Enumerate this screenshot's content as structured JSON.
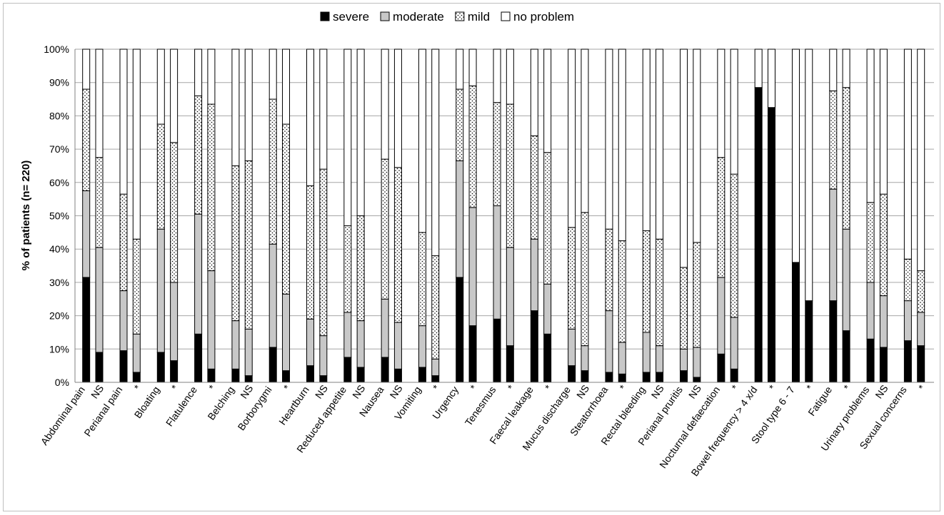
{
  "chart_data": {
    "type": "bar",
    "stacked": true,
    "ylabel": "% of patients (n= 220)",
    "ylim": [
      0,
      100
    ],
    "yticks": [
      "0%",
      "10%",
      "20%",
      "30%",
      "40%",
      "50%",
      "60%",
      "70%",
      "80%",
      "90%",
      "100%"
    ],
    "grid": true,
    "legend_position": "top",
    "legend": [
      {
        "name": "severe",
        "fill": "#000000",
        "pattern": "solid"
      },
      {
        "name": "moderate",
        "fill": "#c8c8c8",
        "pattern": "solid"
      },
      {
        "name": "mild",
        "fill": "#ffffff",
        "pattern": "dots"
      },
      {
        "name": "no problem",
        "fill": "#ffffff",
        "pattern": "solid"
      }
    ],
    "groups": [
      {
        "label": "Abdominal pain",
        "marker": "NS",
        "bars": [
          [
            31.5,
            26,
            30.5,
            12
          ],
          [
            9,
            31.5,
            27,
            32.5
          ]
        ]
      },
      {
        "label": "Perianal pain",
        "marker": "*",
        "bars": [
          [
            9.5,
            18,
            29,
            43.5
          ],
          [
            3,
            11.5,
            28.5,
            57
          ]
        ]
      },
      {
        "label": "Bloating",
        "marker": "*",
        "bars": [
          [
            9,
            37,
            31.5,
            22.5
          ],
          [
            6.5,
            23.5,
            42,
            28
          ]
        ]
      },
      {
        "label": "Flatulence",
        "marker": "*",
        "bars": [
          [
            14.5,
            36,
            35.5,
            14
          ],
          [
            4,
            29.5,
            50,
            16.5
          ]
        ]
      },
      {
        "label": "Belching",
        "marker": "NS",
        "bars": [
          [
            4,
            14.5,
            46.5,
            35
          ],
          [
            2,
            14,
            50.5,
            33.5
          ]
        ]
      },
      {
        "label": "Borborygmi",
        "marker": "*",
        "bars": [
          [
            10.5,
            31,
            43.5,
            15
          ],
          [
            3.5,
            23,
            51,
            22.5
          ]
        ]
      },
      {
        "label": "Heartburn",
        "marker": "NS",
        "bars": [
          [
            5,
            14,
            40,
            41
          ],
          [
            2,
            12,
            50,
            36
          ]
        ]
      },
      {
        "label": "Reduced appetite",
        "marker": "NS",
        "bars": [
          [
            7.5,
            13.5,
            26,
            53
          ],
          [
            4.5,
            14,
            31.5,
            50
          ]
        ]
      },
      {
        "label": "Nausea",
        "marker": "NS",
        "bars": [
          [
            7.5,
            17.5,
            42,
            33
          ],
          [
            4,
            14,
            46.5,
            35.5
          ]
        ]
      },
      {
        "label": "Vomiting",
        "marker": "*",
        "bars": [
          [
            4.5,
            12.5,
            28,
            55
          ],
          [
            2,
            5,
            31,
            62
          ]
        ]
      },
      {
        "label": "Urgency",
        "marker": "*",
        "bars": [
          [
            31.5,
            35,
            21.5,
            12
          ],
          [
            17,
            35.5,
            36.5,
            11
          ]
        ]
      },
      {
        "label": "Tenesmus",
        "marker": "*",
        "bars": [
          [
            19,
            34,
            31,
            16
          ],
          [
            11,
            29.5,
            43,
            16.5
          ]
        ]
      },
      {
        "label": "Faecal leakage",
        "marker": "*",
        "bars": [
          [
            21.5,
            21.5,
            31,
            26
          ],
          [
            14.5,
            15,
            39.5,
            31
          ]
        ]
      },
      {
        "label": "Mucus discharge",
        "marker": "NS",
        "bars": [
          [
            5,
            11,
            30.5,
            53.5
          ],
          [
            3.5,
            7.5,
            40,
            49
          ]
        ]
      },
      {
        "label": "Steatorrhoea",
        "marker": "*",
        "bars": [
          [
            3,
            18.5,
            24.5,
            54
          ],
          [
            2.5,
            9.5,
            30.5,
            57.5
          ]
        ]
      },
      {
        "label": "Rectal bleeding",
        "marker": "NS",
        "bars": [
          [
            3,
            12,
            30.5,
            54.5
          ],
          [
            3,
            8,
            32,
            57
          ]
        ]
      },
      {
        "label": "Perianal pruritis",
        "marker": "NS",
        "bars": [
          [
            3.5,
            6.5,
            24.5,
            65.5
          ],
          [
            1.5,
            9,
            31.5,
            58
          ]
        ]
      },
      {
        "label": "Nocturnal defaecation",
        "marker": "*",
        "bars": [
          [
            8.5,
            23,
            36,
            32.5
          ],
          [
            4,
            15.5,
            43,
            37.5
          ]
        ]
      },
      {
        "label": "Bowel frequency > 4 x/d",
        "marker": "*",
        "bars": [
          [
            88.5,
            0,
            0,
            11.5
          ],
          [
            82.5,
            0,
            0,
            17.5
          ]
        ]
      },
      {
        "label": "Stool type 6 - 7",
        "marker": "*",
        "bars": [
          [
            36,
            0,
            0,
            64
          ],
          [
            24.5,
            0,
            0,
            75.5
          ]
        ]
      },
      {
        "label": "Fatigue",
        "marker": "*",
        "bars": [
          [
            24.5,
            33.5,
            29.5,
            12.5
          ],
          [
            15.5,
            30.5,
            42.5,
            11.5
          ]
        ]
      },
      {
        "label": "Urinary problems",
        "marker": "NS",
        "bars": [
          [
            13,
            17,
            24,
            46
          ],
          [
            10.5,
            15.5,
            30.5,
            43.5
          ]
        ]
      },
      {
        "label": "Sexual concerns",
        "marker": "*",
        "bars": [
          [
            12.5,
            12,
            12.5,
            63
          ],
          [
            11,
            10,
            12.5,
            66.5
          ]
        ]
      }
    ]
  }
}
